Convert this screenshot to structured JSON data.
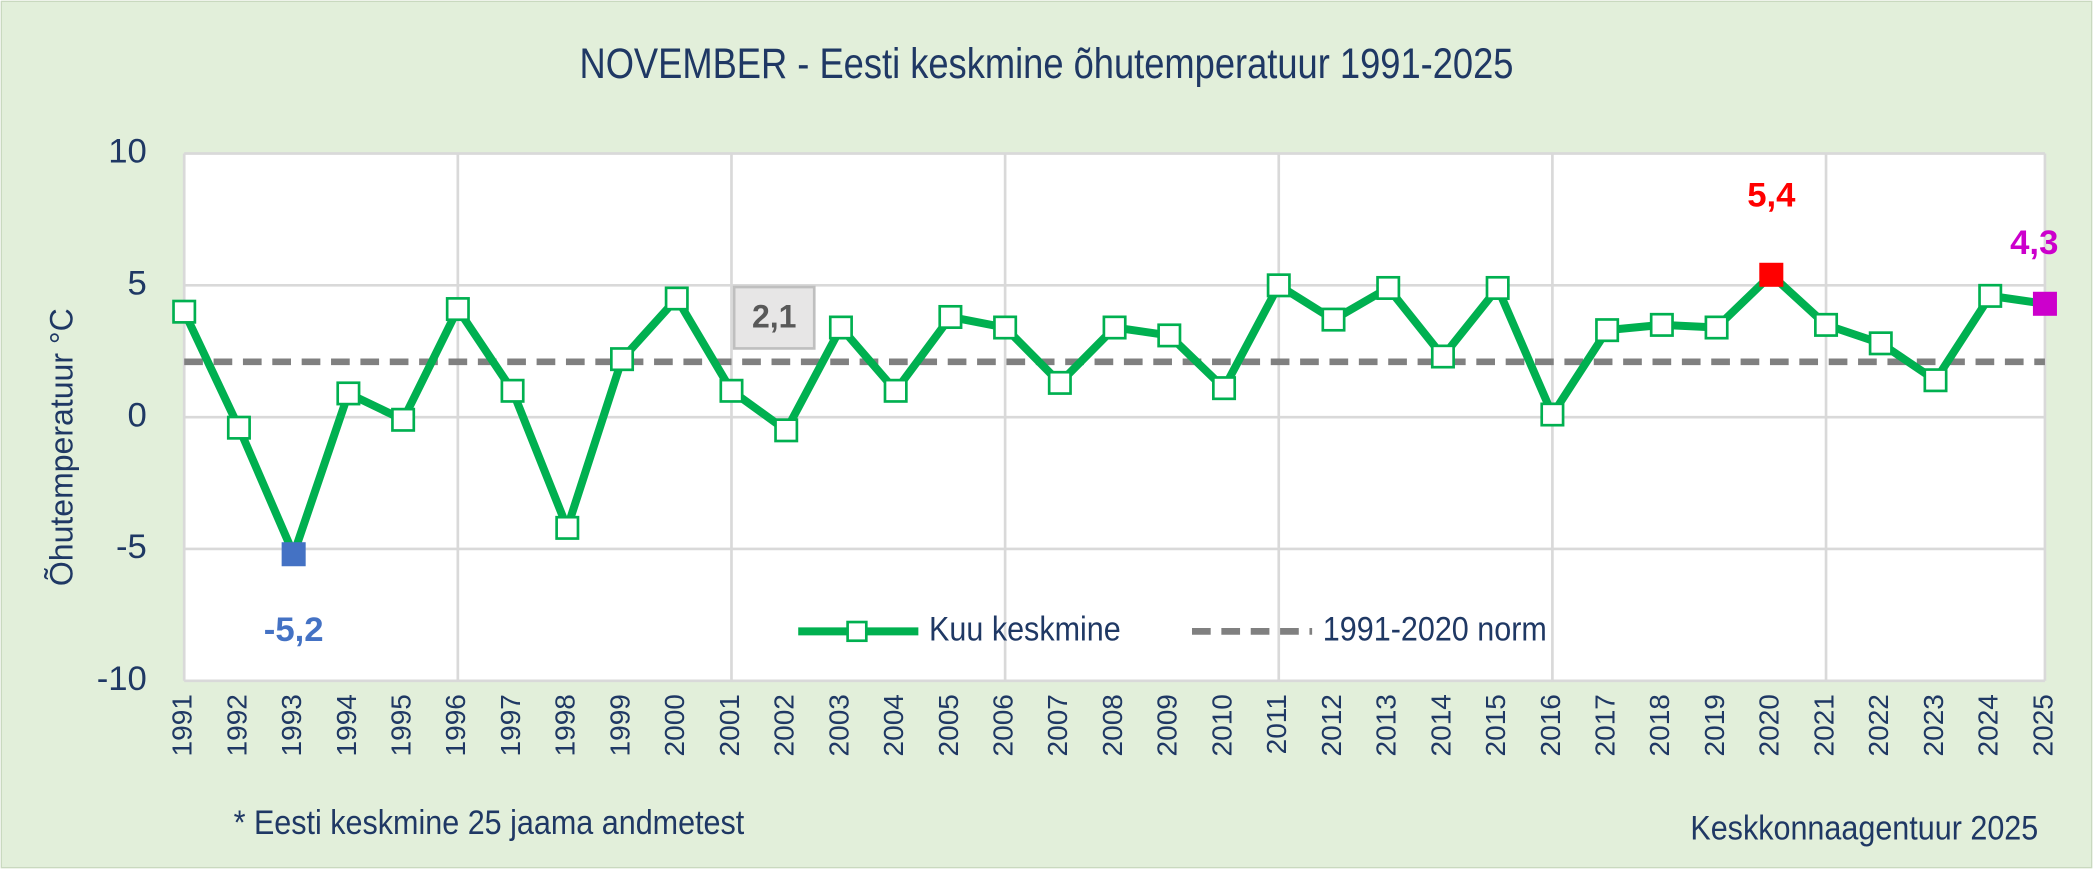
{
  "chart_data": {
    "type": "line",
    "title": "NOVEMBER - Eesti keskmine õhutemperatuur 1991-2025",
    "ylabel": "Õhutemperatuur °C",
    "footnote": "* Eesti keskmine 25 jaama andmetest",
    "source": "Keskkonnaagentuur 2025",
    "categories": [
      "1991",
      "1992",
      "1993",
      "1994",
      "1995",
      "1996",
      "1997",
      "1998",
      "1999",
      "2000",
      "2001",
      "2002",
      "2003",
      "2004",
      "2005",
      "2006",
      "2007",
      "2008",
      "2009",
      "2010",
      "2011",
      "2012",
      "2013",
      "2014",
      "2015",
      "2016",
      "2017",
      "2018",
      "2019",
      "2020",
      "2021",
      "2022",
      "2023",
      "2024",
      "2025"
    ],
    "series": [
      {
        "name": "Kuu keskmine",
        "color": "#00b050",
        "values": [
          4.0,
          -0.4,
          -5.2,
          0.9,
          -0.1,
          4.1,
          1.0,
          -4.2,
          2.2,
          4.5,
          1.0,
          -0.5,
          3.4,
          1.0,
          3.8,
          3.4,
          1.3,
          3.4,
          3.1,
          1.1,
          5.0,
          3.7,
          4.9,
          2.3,
          4.9,
          0.1,
          3.3,
          3.5,
          3.4,
          5.4,
          3.5,
          2.8,
          1.4,
          4.6,
          4.3
        ],
        "value_labels": [
          null,
          null,
          "-5,2",
          null,
          null,
          null,
          null,
          null,
          null,
          null,
          null,
          null,
          null,
          null,
          null,
          null,
          null,
          null,
          null,
          null,
          null,
          null,
          null,
          null,
          null,
          null,
          null,
          null,
          null,
          "5,4",
          null,
          null,
          null,
          null,
          "4,3"
        ],
        "marker_colors": [
          null,
          null,
          "#4472c4",
          null,
          null,
          null,
          null,
          null,
          null,
          null,
          null,
          null,
          null,
          null,
          null,
          null,
          null,
          null,
          null,
          null,
          null,
          null,
          null,
          null,
          null,
          null,
          null,
          null,
          null,
          "#ff0000",
          null,
          null,
          null,
          null,
          "#cc00cc"
        ]
      }
    ],
    "norm": {
      "name": "1991-2020 norm",
      "value": 2.1,
      "value_label": "2,1",
      "color": "#808080"
    },
    "ylim": [
      -10,
      10
    ],
    "yticks": [
      -10,
      -5,
      0,
      5,
      10
    ],
    "grid": true
  }
}
